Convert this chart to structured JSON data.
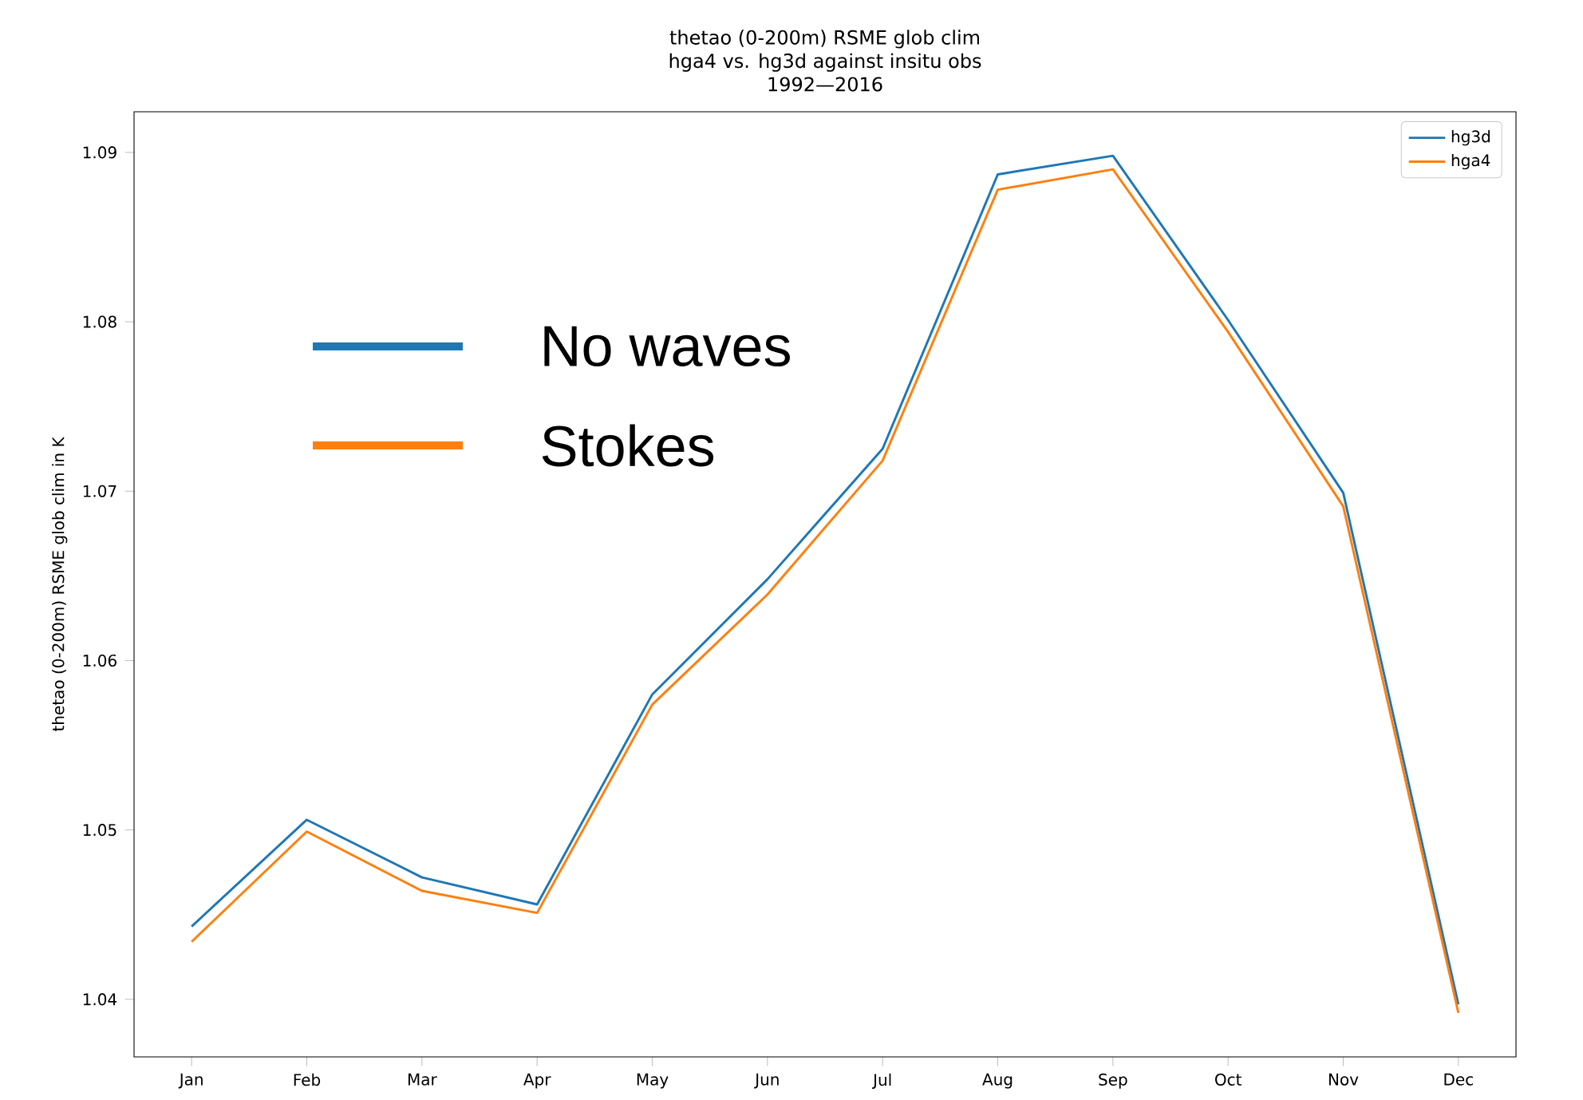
{
  "chart_data": {
    "type": "line",
    "title": "thetao (0-200m) RSME glob clim\nhga4 vs. hg3d against insitu obs\n1992—2016",
    "ylabel": "thetao (0-200m) RSME glob clim in K",
    "categories": [
      "Jan",
      "Feb",
      "Mar",
      "Apr",
      "May",
      "Jun",
      "Jul",
      "Aug",
      "Sep",
      "Oct",
      "Nov",
      "Dec"
    ],
    "series": [
      {
        "name": "hg3d",
        "color": "#1f77b4",
        "values": [
          1.0443,
          1.0506,
          1.0472,
          1.0456,
          1.058,
          1.0648,
          1.0725,
          1.0887,
          1.0898,
          1.0801,
          1.0699,
          1.0397
        ]
      },
      {
        "name": "hga4",
        "color": "#ff7f0e",
        "values": [
          1.0434,
          1.0499,
          1.0464,
          1.0451,
          1.0574,
          1.0639,
          1.0718,
          1.0878,
          1.089,
          1.0794,
          1.0691,
          1.0392
        ]
      }
    ],
    "ylim": [
      1.0366,
      1.0924
    ],
    "yticks": [
      1.04,
      1.05,
      1.06,
      1.07,
      1.08,
      1.09
    ],
    "legend": "top right",
    "grid": false,
    "marker": "none",
    "line_style": "solid",
    "annotations": [
      "No waves",
      "Stokes"
    ]
  }
}
